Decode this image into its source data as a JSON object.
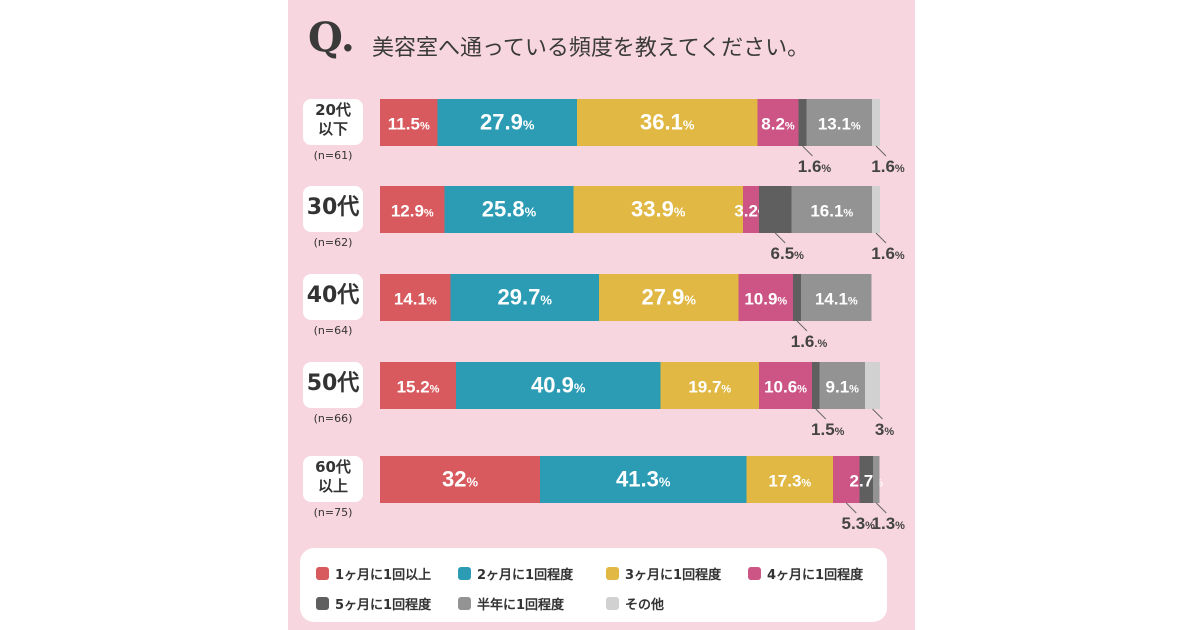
{
  "title": {
    "q_mark": "Q.",
    "question": "美容室へ通っている頻度を教えてください。"
  },
  "colors": {
    "c1": "#d95a5e",
    "c2": "#2c9cb5",
    "c3": "#e0b843",
    "c4": "#cc5585",
    "c5": "#5f5f5f",
    "c6": "#939393",
    "c7": "#d1d1d1"
  },
  "groups": [
    {
      "age": "20代以下",
      "n": "(n=61)"
    },
    {
      "age": "30代",
      "n": "(n=62)"
    },
    {
      "age": "40代",
      "n": "(n=64)"
    },
    {
      "age": "50代",
      "n": "(n=66)"
    },
    {
      "age": "60代以上",
      "n": "(n=75)"
    }
  ],
  "legend": [
    "1ヶ月に1回以上",
    "2ヶ月に1回程度",
    "3ヶ月に1回程度",
    "4ヶ月に1回程度",
    "5ヶ月に1回程度",
    "半年に1回程度",
    "その他"
  ],
  "chart_data": {
    "type": "bar",
    "orientation": "horizontal",
    "stacked": true,
    "categories": [
      "20代以下",
      "30代",
      "40代",
      "50代",
      "60代以上"
    ],
    "series": [
      {
        "name": "1ヶ月に1回以上",
        "values": [
          11.5,
          12.9,
          14.1,
          15.2,
          32
        ],
        "labels": [
          "11.5%",
          "12.9%",
          "14.1%",
          "15.2%",
          "32%"
        ]
      },
      {
        "name": "2ヶ月に1回程度",
        "values": [
          27.9,
          25.8,
          29.7,
          40.9,
          41.3
        ],
        "labels": [
          "27.9%",
          "25.8%",
          "29.7%",
          "40.9%",
          "41.3%"
        ]
      },
      {
        "name": "3ヶ月に1回程度",
        "values": [
          36.1,
          33.9,
          27.9,
          19.7,
          17.3
        ],
        "labels": [
          "36.1%",
          "33.9%",
          "27.9%",
          "19.7%",
          "17.3%"
        ]
      },
      {
        "name": "4ヶ月に1回程度",
        "values": [
          8.2,
          3.2,
          10.9,
          10.6,
          5.3
        ],
        "labels": [
          "8.2%",
          "3.2%",
          "10.9%",
          "10.6%",
          "5.3%"
        ]
      },
      {
        "name": "5ヶ月に1回程度",
        "values": [
          1.6,
          6.5,
          1.6,
          1.5,
          2.7
        ],
        "labels": [
          "1.6%",
          "6.5%",
          "1.6.%",
          "1.5%",
          "2.7%"
        ]
      },
      {
        "name": "半年に1回程度",
        "values": [
          13.1,
          16.1,
          14.1,
          9.1,
          1.3
        ],
        "labels": [
          "13.1%",
          "16.1%",
          "14.1%",
          "9.1%",
          "1.3%"
        ]
      },
      {
        "name": "その他",
        "values": [
          1.6,
          1.6,
          0,
          3,
          0
        ],
        "labels": [
          "1.6%",
          "1.6%",
          "",
          "3%",
          ""
        ]
      }
    ],
    "xlim": [
      0,
      100
    ],
    "grid": false,
    "legend_position": "bottom"
  }
}
